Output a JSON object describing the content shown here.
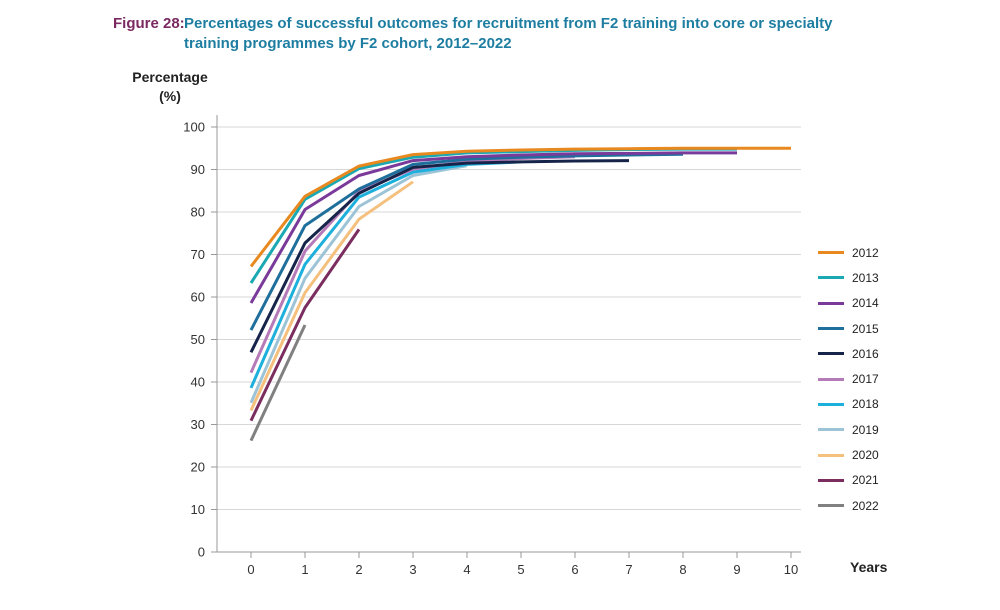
{
  "title": {
    "figure": "Figure 28:",
    "text": "Percentages of successful outcomes for recruitment from F2 training into core or specialty training programmes by F2 cohort, 2012–2022"
  },
  "chart_data": {
    "type": "line",
    "title": "Percentages of successful outcomes for recruitment from F2 training into core or specialty training programmes by F2 cohort, 2012–2022",
    "xlabel": "Years",
    "ylabel": "Percentage (%)",
    "ylabel_lines": [
      "Percentage",
      "(%)"
    ],
    "xlim": [
      0,
      10
    ],
    "ylim": [
      0,
      100
    ],
    "xticks": [
      0,
      1,
      2,
      3,
      4,
      5,
      6,
      7,
      8,
      9,
      10
    ],
    "yticks": [
      0,
      10,
      20,
      30,
      40,
      50,
      60,
      70,
      80,
      90,
      100
    ],
    "grid": "horizontal",
    "legend_position": "right",
    "series": [
      {
        "name": "2012",
        "color": "#e8891f",
        "x": [
          0,
          1,
          2,
          3,
          4,
          5,
          6,
          7,
          8,
          9,
          10
        ],
        "values": [
          67.2,
          83.7,
          90.8,
          93.5,
          94.3,
          94.6,
          94.8,
          94.9,
          95.0,
          95.0,
          95.0
        ]
      },
      {
        "name": "2013",
        "color": "#1aa8b3",
        "x": [
          0,
          1,
          2,
          3,
          4,
          5,
          6,
          7,
          8,
          9
        ],
        "values": [
          63.3,
          83.0,
          90.2,
          92.9,
          93.9,
          94.2,
          94.5,
          94.7,
          94.8,
          94.8
        ]
      },
      {
        "name": "2014",
        "color": "#7a3a9a",
        "x": [
          0,
          1,
          2,
          3,
          4,
          5,
          6,
          7,
          8,
          9
        ],
        "values": [
          58.6,
          80.6,
          88.6,
          92.1,
          93.0,
          93.4,
          93.7,
          93.8,
          93.9,
          93.9
        ]
      },
      {
        "name": "2015",
        "color": "#1e6f9c",
        "x": [
          0,
          1,
          2,
          3,
          4,
          5,
          6,
          7,
          8
        ],
        "values": [
          52.2,
          76.8,
          85.4,
          91.2,
          92.4,
          92.9,
          93.2,
          93.4,
          93.6
        ]
      },
      {
        "name": "2016",
        "color": "#16244a",
        "x": [
          0,
          1,
          2,
          3,
          4,
          5,
          6,
          7
        ],
        "values": [
          47.0,
          72.7,
          84.4,
          90.5,
          91.5,
          91.8,
          92.0,
          92.1
        ]
      },
      {
        "name": "2017",
        "color": "#b57ab8",
        "x": [
          0,
          1,
          2,
          3,
          4,
          5,
          6
        ],
        "values": [
          42.2,
          70.8,
          84.9,
          90.1,
          91.9,
          92.6,
          93.0
        ]
      },
      {
        "name": "2018",
        "color": "#1db0dc",
        "x": [
          0,
          1,
          2,
          3,
          4,
          5
        ],
        "values": [
          38.6,
          67.7,
          83.5,
          89.4,
          91.2,
          91.8
        ]
      },
      {
        "name": "2019",
        "color": "#9cc4d6",
        "x": [
          0,
          1,
          2,
          3,
          4
        ],
        "values": [
          35.1,
          64.4,
          81.3,
          88.6,
          90.9
        ]
      },
      {
        "name": "2020",
        "color": "#f5c07e",
        "x": [
          0,
          1,
          2,
          3
        ],
        "values": [
          33.3,
          61.0,
          78.3,
          87.1
        ]
      },
      {
        "name": "2021",
        "color": "#7a2d5e",
        "x": [
          0,
          1,
          2
        ],
        "values": [
          30.9,
          57.5,
          75.9
        ]
      },
      {
        "name": "2022",
        "color": "#808080",
        "x": [
          0,
          1
        ],
        "values": [
          26.2,
          53.4
        ]
      }
    ]
  }
}
